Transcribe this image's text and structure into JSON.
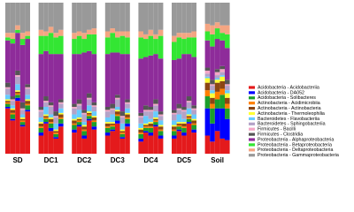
{
  "chart_data": {
    "type": "stacked-bar",
    "legend": "right",
    "ylim": [
      0,
      100
    ],
    "categories": [
      "SD",
      "DC1",
      "DC2",
      "DC3",
      "DC4",
      "DC5",
      "Soil"
    ],
    "series": [
      {
        "name": "Acidobacteria - Acidobacteriia",
        "color": "#e41a1c",
        "values": [
          [
            30,
            22,
            35,
            18,
            28
          ],
          [
            12,
            20,
            15,
            10,
            18
          ],
          [
            14,
            18,
            10,
            22,
            16
          ],
          [
            12,
            15,
            20,
            10,
            18
          ],
          [
            8,
            14,
            12,
            18,
            10
          ],
          [
            10,
            15,
            12,
            20,
            14
          ],
          [
            12,
            8,
            15,
            10,
            9
          ]
        ]
      },
      {
        "name": "Acidobacteria - DA052",
        "color": "#0000ff",
        "values": [
          [
            1,
            1,
            2,
            1,
            1
          ],
          [
            2,
            1,
            2,
            1,
            2
          ],
          [
            2,
            1,
            2,
            1,
            2
          ],
          [
            2,
            1,
            2,
            1,
            2
          ],
          [
            2,
            1,
            2,
            1,
            2
          ],
          [
            2,
            1,
            2,
            1,
            2
          ],
          [
            18,
            12,
            15,
            20,
            14
          ]
        ]
      },
      {
        "name": "Acidobacteria - Solibacteres",
        "color": "#1b9e2b",
        "values": [
          [
            2,
            3,
            2,
            2,
            3
          ],
          [
            3,
            2,
            3,
            2,
            3
          ],
          [
            3,
            2,
            3,
            2,
            3
          ],
          [
            3,
            2,
            3,
            2,
            3
          ],
          [
            3,
            2,
            3,
            2,
            3
          ],
          [
            3,
            2,
            3,
            2,
            3
          ],
          [
            8,
            10,
            6,
            9,
            7
          ]
        ]
      },
      {
        "name": "Actinobacteria - Acidimicrobiia",
        "color": "#ff7f00",
        "values": [
          [
            1,
            1,
            1,
            1,
            1
          ],
          [
            1,
            1,
            1,
            1,
            1
          ],
          [
            1,
            1,
            1,
            1,
            1
          ],
          [
            1,
            1,
            1,
            1,
            1
          ],
          [
            1,
            1,
            1,
            1,
            1
          ],
          [
            1,
            1,
            1,
            1,
            1
          ],
          [
            4,
            3,
            5,
            4,
            3
          ]
        ]
      },
      {
        "name": "Actinobacteria - Actinobacteria",
        "color": "#8b4513",
        "values": [
          [
            1,
            2,
            1,
            1,
            2
          ],
          [
            2,
            1,
            2,
            1,
            2
          ],
          [
            2,
            1,
            2,
            1,
            2
          ],
          [
            2,
            1,
            2,
            1,
            2
          ],
          [
            2,
            1,
            2,
            1,
            2
          ],
          [
            2,
            1,
            2,
            1,
            2
          ],
          [
            5,
            4,
            6,
            5,
            4
          ]
        ]
      },
      {
        "name": "Actinobacteria - Thermoleophilia",
        "color": "#ffff33",
        "values": [
          [
            1,
            1,
            1,
            1,
            1
          ],
          [
            1,
            1,
            1,
            1,
            1
          ],
          [
            1,
            1,
            1,
            1,
            1
          ],
          [
            1,
            1,
            1,
            1,
            1
          ],
          [
            1,
            1,
            1,
            1,
            1
          ],
          [
            1,
            1,
            1,
            1,
            1
          ],
          [
            3,
            3,
            2,
            3,
            3
          ]
        ]
      },
      {
        "name": "Bacteroidetes - Flavobacteriia",
        "color": "#66ccff",
        "values": [
          [
            3,
            2,
            4,
            2,
            3
          ],
          [
            3,
            5,
            2,
            4,
            3
          ],
          [
            3,
            5,
            2,
            4,
            3
          ],
          [
            3,
            5,
            2,
            4,
            3
          ],
          [
            3,
            5,
            2,
            4,
            3
          ],
          [
            3,
            5,
            2,
            4,
            3
          ],
          [
            1,
            2,
            1,
            1,
            2
          ]
        ]
      },
      {
        "name": "Bacteroidetes - Sphingobacteriia",
        "color": "#b3a2c7",
        "values": [
          [
            4,
            3,
            5,
            3,
            4
          ],
          [
            4,
            3,
            5,
            4,
            3
          ],
          [
            4,
            3,
            5,
            4,
            3
          ],
          [
            4,
            3,
            5,
            4,
            3
          ],
          [
            4,
            3,
            5,
            4,
            3
          ],
          [
            4,
            3,
            5,
            4,
            3
          ],
          [
            2,
            3,
            2,
            2,
            3
          ]
        ]
      },
      {
        "name": "Firmicutes - Bacilli",
        "color": "#f4a6c6",
        "values": [
          [
            1,
            1,
            1,
            1,
            1
          ],
          [
            1,
            1,
            1,
            1,
            1
          ],
          [
            1,
            1,
            1,
            1,
            1
          ],
          [
            1,
            1,
            1,
            1,
            1
          ],
          [
            1,
            1,
            1,
            1,
            1
          ],
          [
            1,
            1,
            1,
            1,
            1
          ],
          [
            2,
            1,
            2,
            2,
            1
          ]
        ]
      },
      {
        "name": "Firmicutes - Clostridia",
        "color": "#555555",
        "values": [
          [
            3,
            2,
            3,
            4,
            2
          ],
          [
            2,
            3,
            2,
            3,
            2
          ],
          [
            2,
            3,
            2,
            3,
            2
          ],
          [
            2,
            3,
            2,
            3,
            2
          ],
          [
            2,
            3,
            2,
            3,
            2
          ],
          [
            2,
            3,
            2,
            3,
            2
          ],
          [
            2,
            3,
            2,
            2,
            3
          ]
        ]
      },
      {
        "name": "Proteobacteria - Alphaproteobacteria",
        "color": "#8e2c9a",
        "values": [
          [
            28,
            35,
            25,
            38,
            30
          ],
          [
            35,
            30,
            32,
            38,
            30
          ],
          [
            33,
            30,
            38,
            28,
            32
          ],
          [
            35,
            34,
            28,
            38,
            30
          ],
          [
            36,
            32,
            34,
            30,
            35
          ],
          [
            33,
            30,
            35,
            28,
            32
          ],
          [
            18,
            22,
            20,
            17,
            21
          ]
        ]
      },
      {
        "name": "Proteobacteria - Betaproteobacteria",
        "color": "#33e633",
        "values": [
          [
            2,
            3,
            2,
            4,
            2
          ],
          [
            12,
            10,
            14,
            11,
            12
          ],
          [
            10,
            12,
            9,
            11,
            13
          ],
          [
            11,
            13,
            10,
            12,
            11
          ],
          [
            14,
            12,
            13,
            10,
            15
          ],
          [
            12,
            14,
            10,
            11,
            13
          ],
          [
            6,
            8,
            7,
            5,
            9
          ]
        ]
      },
      {
        "name": "Proteobacteria - Deltaproteobacteria",
        "color": "#f4a582",
        "values": [
          [
            3,
            4,
            3,
            4,
            3
          ],
          [
            4,
            3,
            4,
            3,
            4
          ],
          [
            4,
            3,
            4,
            3,
            4
          ],
          [
            4,
            3,
            4,
            3,
            4
          ],
          [
            4,
            3,
            4,
            3,
            4
          ],
          [
            4,
            3,
            4,
            3,
            4
          ],
          [
            5,
            6,
            4,
            5,
            6
          ]
        ]
      },
      {
        "name": "Proteobacteria - Gammaproteobacteria",
        "color": "#999999",
        "values": [
          [
            20,
            20,
            15,
            20,
            19
          ],
          [
            18,
            19,
            16,
            20,
            18
          ],
          [
            20,
            19,
            20,
            18,
            17
          ],
          [
            19,
            17,
            19,
            19,
            19
          ],
          [
            19,
            21,
            18,
            21,
            18
          ],
          [
            22,
            20,
            20,
            20,
            19
          ],
          [
            14,
            15,
            13,
            15,
            15
          ]
        ]
      }
    ]
  }
}
